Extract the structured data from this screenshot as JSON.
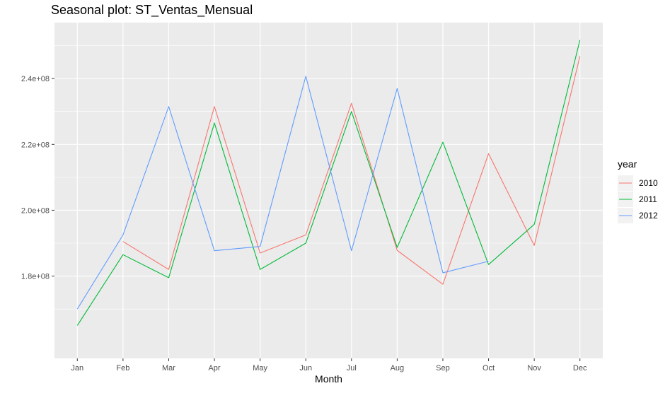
{
  "chart_data": {
    "type": "line",
    "title": "Seasonal plot: ST_Ventas_Mensual",
    "xlabel": "Month",
    "ylabel": "",
    "categories": [
      "Jan",
      "Feb",
      "Mar",
      "Apr",
      "May",
      "Jun",
      "Jul",
      "Aug",
      "Sep",
      "Oct",
      "Nov",
      "Dec"
    ],
    "ylim": [
      155000000,
      257000000
    ],
    "yticks": [
      180000000,
      200000000,
      220000000,
      240000000
    ],
    "ytick_labels": [
      "1.8e+08",
      "2.0e+08",
      "2.2e+08",
      "2.4e+08"
    ],
    "legend_title": "year",
    "legend_position": "right",
    "grid": true,
    "panel_color": "#EBEBEB",
    "series": [
      {
        "name": "2010",
        "color": "#F8766D",
        "values": [
          null,
          190500000,
          182000000,
          231500000,
          187000000,
          192500000,
          232500000,
          187800000,
          177500000,
          217200000,
          189300000,
          246800000
        ]
      },
      {
        "name": "2011",
        "color": "#00BA38",
        "values": [
          165000000,
          186500000,
          179500000,
          226500000,
          182000000,
          190000000,
          230000000,
          188700000,
          220700000,
          183500000,
          195700000,
          251700000
        ]
      },
      {
        "name": "2012",
        "color": "#619CFF",
        "values": [
          170000000,
          192500000,
          231500000,
          187700000,
          189000000,
          240700000,
          187700000,
          237000000,
          181000000,
          184500000,
          null,
          null
        ]
      }
    ]
  }
}
